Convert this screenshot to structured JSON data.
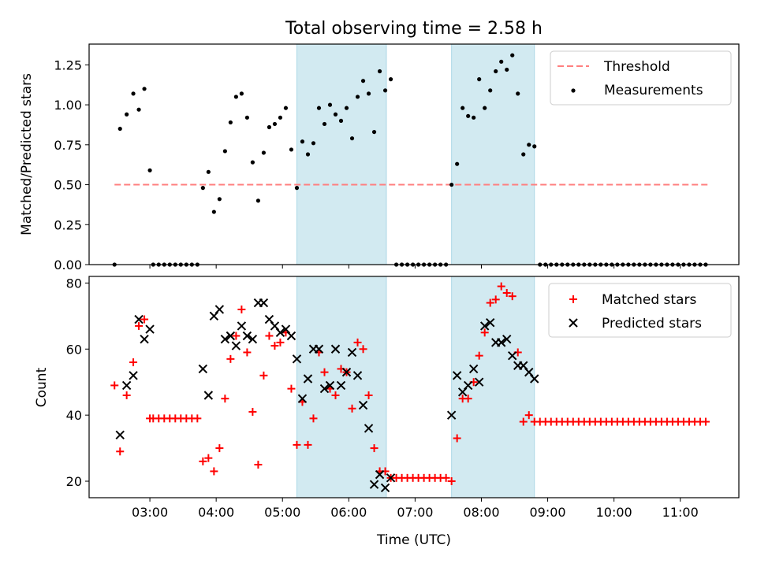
{
  "chart_data": [
    {
      "type": "scatter",
      "title": "Total observing time = 2.58 h",
      "xlabel": "",
      "ylabel": "Matched/Predicted stars",
      "xlim": [
        "02:05",
        "11:53"
      ],
      "ylim": [
        0,
        1.38
      ],
      "yticks": [
        0.0,
        0.25,
        0.5,
        0.75,
        1.0,
        1.25
      ],
      "ytick_labels": [
        "0.00",
        "0.25",
        "0.50",
        "0.75",
        "1.00",
        "1.25"
      ],
      "shaded_intervals": [
        [
          "05:13",
          "06:34"
        ],
        [
          "07:33",
          "08:48"
        ]
      ],
      "shade_color": "#add8e6",
      "legend_position": "upper right",
      "threshold": {
        "name": "Threshold",
        "y": 0.5,
        "x_range": [
          "02:28",
          "11:25"
        ],
        "style": "dashed",
        "color": "#ff7f7f"
      },
      "series": [
        {
          "name": "Measurements",
          "color": "#000000",
          "marker": "dot",
          "x": [
            "02:28",
            "02:33",
            "02:39",
            "02:45",
            "02:50",
            "02:55",
            "03:00",
            "03:03",
            "03:08",
            "03:13",
            "03:18",
            "03:23",
            "03:28",
            "03:33",
            "03:38",
            "03:43",
            "03:48",
            "03:53",
            "03:58",
            "04:03",
            "04:08",
            "04:13",
            "04:18",
            "04:23",
            "04:28",
            "04:33",
            "04:38",
            "04:43",
            "04:48",
            "04:53",
            "04:58",
            "05:03",
            "05:08",
            "05:13",
            "05:18",
            "05:23",
            "05:28",
            "05:33",
            "05:38",
            "05:43",
            "05:48",
            "05:53",
            "05:58",
            "06:03",
            "06:08",
            "06:13",
            "06:18",
            "06:23",
            "06:28",
            "06:33",
            "06:38",
            "06:43",
            "06:48",
            "06:53",
            "06:58",
            "07:03",
            "07:08",
            "07:13",
            "07:18",
            "07:23",
            "07:28",
            "07:33",
            "07:38",
            "07:43",
            "07:48",
            "07:53",
            "07:58",
            "08:03",
            "08:08",
            "08:13",
            "08:18",
            "08:23",
            "08:28",
            "08:33",
            "08:38",
            "08:43",
            "08:48",
            "08:53",
            "08:58",
            "09:03",
            "09:08",
            "09:13",
            "09:18",
            "09:23",
            "09:28",
            "09:33",
            "09:38",
            "09:43",
            "09:48",
            "09:53",
            "09:58",
            "10:03",
            "10:08",
            "10:13",
            "10:18",
            "10:23",
            "10:28",
            "10:33",
            "10:38",
            "10:43",
            "10:48",
            "10:53",
            "10:58",
            "11:03",
            "11:08",
            "11:13",
            "11:18",
            "11:23"
          ],
          "y": [
            0.0,
            0.85,
            0.94,
            1.07,
            0.97,
            1.1,
            0.59,
            0.0,
            0.0,
            0.0,
            0.0,
            0.0,
            0.0,
            0.0,
            0.0,
            0.0,
            0.48,
            0.58,
            0.33,
            0.41,
            0.71,
            0.89,
            1.05,
            1.07,
            0.92,
            0.64,
            0.4,
            0.7,
            0.86,
            0.88,
            0.92,
            0.98,
            0.72,
            0.48,
            0.77,
            0.69,
            0.76,
            0.98,
            0.88,
            1.0,
            0.94,
            0.9,
            0.98,
            0.79,
            1.05,
            1.15,
            1.07,
            0.83,
            1.21,
            1.09,
            1.16,
            0.0,
            0.0,
            0.0,
            0.0,
            0.0,
            0.0,
            0.0,
            0.0,
            0.0,
            0.0,
            0.5,
            0.63,
            0.98,
            0.93,
            0.92,
            1.16,
            0.98,
            1.09,
            1.21,
            1.27,
            1.22,
            1.31,
            1.07,
            0.69,
            0.75,
            0.74,
            0.0,
            0.0,
            0.0,
            0.0,
            0.0,
            0.0,
            0.0,
            0.0,
            0.0,
            0.0,
            0.0,
            0.0,
            0.0,
            0.0,
            0.0,
            0.0,
            0.0,
            0.0,
            0.0,
            0.0,
            0.0,
            0.0,
            0.0,
            0.0,
            0.0,
            0.0,
            0.0,
            0.0,
            0.0,
            0.0,
            0.0
          ]
        }
      ]
    },
    {
      "type": "scatter",
      "title": "",
      "xlabel": "Time (UTC)",
      "ylabel": "Count",
      "xlim": [
        "02:05",
        "11:53"
      ],
      "ylim": [
        15,
        82
      ],
      "yticks": [
        20,
        40,
        60,
        80
      ],
      "ytick_labels": [
        "20",
        "40",
        "60",
        "80"
      ],
      "xticks": [
        "03:00",
        "04:00",
        "05:00",
        "06:00",
        "07:00",
        "08:00",
        "09:00",
        "10:00",
        "11:00"
      ],
      "shaded_intervals": [
        [
          "05:13",
          "06:34"
        ],
        [
          "07:33",
          "08:48"
        ]
      ],
      "shade_color": "#add8e6",
      "legend_position": "upper right",
      "series": [
        {
          "name": "Matched stars",
          "color": "#ff0000",
          "marker": "plus",
          "x": [
            "02:28",
            "02:33",
            "02:39",
            "02:45",
            "02:50",
            "02:55",
            "03:00",
            "03:03",
            "03:08",
            "03:13",
            "03:18",
            "03:23",
            "03:28",
            "03:33",
            "03:38",
            "03:43",
            "03:48",
            "03:53",
            "03:58",
            "04:03",
            "04:08",
            "04:13",
            "04:18",
            "04:23",
            "04:28",
            "04:33",
            "04:38",
            "04:43",
            "04:48",
            "04:53",
            "04:58",
            "05:03",
            "05:08",
            "05:13",
            "05:18",
            "05:23",
            "05:28",
            "05:33",
            "05:38",
            "05:43",
            "05:48",
            "05:53",
            "05:58",
            "06:03",
            "06:08",
            "06:13",
            "06:18",
            "06:23",
            "06:28",
            "06:33",
            "06:38",
            "06:43",
            "06:48",
            "06:53",
            "06:58",
            "07:03",
            "07:08",
            "07:13",
            "07:18",
            "07:23",
            "07:28",
            "07:33",
            "07:38",
            "07:43",
            "07:48",
            "07:53",
            "07:58",
            "08:03",
            "08:08",
            "08:13",
            "08:18",
            "08:23",
            "08:28",
            "08:33",
            "08:38",
            "08:43",
            "08:48",
            "08:53",
            "08:58",
            "09:03",
            "09:08",
            "09:13",
            "09:18",
            "09:23",
            "09:28",
            "09:33",
            "09:38",
            "09:43",
            "09:48",
            "09:53",
            "09:58",
            "10:03",
            "10:08",
            "10:13",
            "10:18",
            "10:23",
            "10:28",
            "10:33",
            "10:38",
            "10:43",
            "10:48",
            "10:53",
            "10:58",
            "11:03",
            "11:08",
            "11:13",
            "11:18",
            "11:23"
          ],
          "y": [
            49,
            29,
            46,
            56,
            67,
            69,
            39,
            39,
            39,
            39,
            39,
            39,
            39,
            39,
            39,
            39,
            26,
            27,
            23,
            30,
            45,
            57,
            64,
            72,
            59,
            41,
            25,
            52,
            64,
            61,
            62,
            65,
            48,
            31,
            44,
            31,
            39,
            59,
            53,
            48,
            46,
            54,
            53,
            42,
            62,
            60,
            46,
            30,
            23,
            23,
            21,
            21,
            21,
            21,
            21,
            21,
            21,
            21,
            21,
            21,
            21,
            20,
            33,
            45,
            45,
            50,
            58,
            65,
            74,
            75,
            79,
            77,
            76,
            59,
            38,
            40,
            38,
            38,
            38,
            38,
            38,
            38,
            38,
            38,
            38,
            38,
            38,
            38,
            38,
            38,
            38,
            38,
            38,
            38,
            38,
            38,
            38,
            38,
            38,
            38,
            38,
            38,
            38,
            38,
            38,
            38,
            38,
            38
          ]
        },
        {
          "name": "Predicted stars",
          "color": "#000000",
          "marker": "x",
          "x": [
            "02:33",
            "02:39",
            "02:45",
            "02:50",
            "02:55",
            "03:00",
            "03:48",
            "03:53",
            "03:58",
            "04:03",
            "04:08",
            "04:13",
            "04:18",
            "04:23",
            "04:28",
            "04:33",
            "04:38",
            "04:43",
            "04:48",
            "04:53",
            "04:58",
            "05:03",
            "05:08",
            "05:13",
            "05:18",
            "05:23",
            "05:28",
            "05:33",
            "05:38",
            "05:43",
            "05:48",
            "05:53",
            "05:58",
            "06:03",
            "06:08",
            "06:13",
            "06:18",
            "06:23",
            "06:28",
            "06:33",
            "06:38",
            "07:33",
            "07:38",
            "07:43",
            "07:48",
            "07:53",
            "07:58",
            "08:03",
            "08:08",
            "08:13",
            "08:18",
            "08:23",
            "08:28",
            "08:33",
            "08:38",
            "08:43",
            "08:48"
          ],
          "y": [
            34,
            49,
            52,
            69,
            63,
            66,
            54,
            46,
            70,
            72,
            63,
            64,
            61,
            67,
            64,
            63,
            74,
            74,
            69,
            67,
            65,
            66,
            64,
            57,
            45,
            51,
            60,
            60,
            48,
            49,
            60,
            49,
            53,
            59,
            52,
            43,
            36,
            19,
            22,
            18,
            21,
            40,
            52,
            47,
            49,
            54,
            50,
            67,
            68,
            62,
            62,
            63,
            58,
            55,
            55,
            53,
            51
          ]
        }
      ]
    }
  ]
}
